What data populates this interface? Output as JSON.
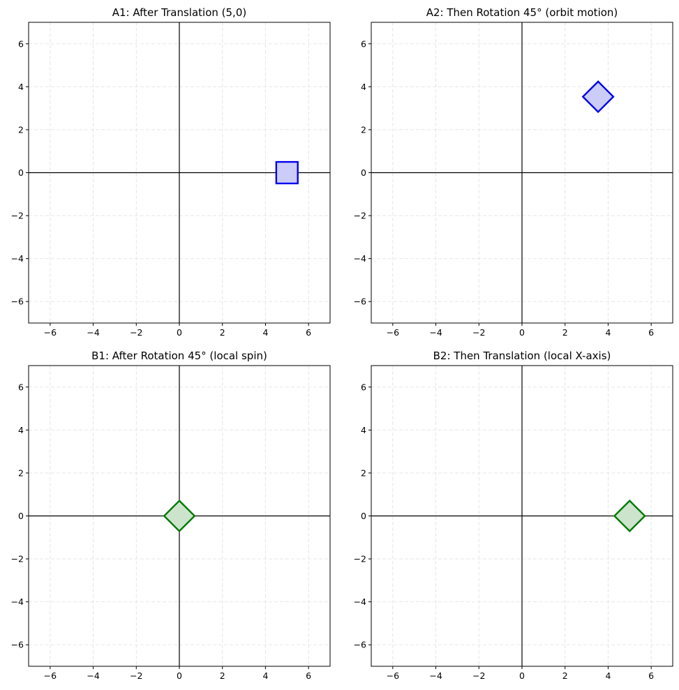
{
  "chart_data": [
    {
      "type": "line",
      "title": "A1: After Translation (5,0)",
      "xlim": [
        -7,
        7
      ],
      "ylim": [
        -7,
        7
      ],
      "xticks": [
        -6,
        -4,
        -2,
        0,
        2,
        4,
        6
      ],
      "yticks": [
        -6,
        -4,
        -2,
        0,
        2,
        4,
        6
      ],
      "xtick_labels": [
        "−6",
        "−4",
        "−2",
        "0",
        "2",
        "4",
        "6"
      ],
      "ytick_labels": [
        "−6",
        "−4",
        "−2",
        "0",
        "2",
        "4",
        "6"
      ],
      "grid": true,
      "shape": {
        "edge_color": "#0000ee",
        "fill_color": "#ccccf8",
        "vertices": [
          [
            4.5,
            -0.5
          ],
          [
            5.5,
            -0.5
          ],
          [
            5.5,
            0.5
          ],
          [
            4.5,
            0.5
          ]
        ]
      }
    },
    {
      "type": "line",
      "title": "A2: Then Rotation 45° (orbit motion)",
      "xlim": [
        -7,
        7
      ],
      "ylim": [
        -7,
        7
      ],
      "xticks": [
        -6,
        -4,
        -2,
        0,
        2,
        4,
        6
      ],
      "yticks": [
        -6,
        -4,
        -2,
        0,
        2,
        4,
        6
      ],
      "xtick_labels": [
        "−6",
        "−4",
        "−2",
        "0",
        "2",
        "4",
        "6"
      ],
      "ytick_labels": [
        "−6",
        "−4",
        "−2",
        "0",
        "2",
        "4",
        "6"
      ],
      "grid": true,
      "shape": {
        "edge_color": "#0000ee",
        "fill_color": "#ccccf8",
        "vertices": [
          [
            3.536,
            2.828
          ],
          [
            4.243,
            3.536
          ],
          [
            3.536,
            4.243
          ],
          [
            2.828,
            3.536
          ]
        ]
      }
    },
    {
      "type": "line",
      "title": "B1: After Rotation 45° (local spin)",
      "xlim": [
        -7,
        7
      ],
      "ylim": [
        -7,
        7
      ],
      "xticks": [
        -6,
        -4,
        -2,
        0,
        2,
        4,
        6
      ],
      "yticks": [
        -6,
        -4,
        -2,
        0,
        2,
        4,
        6
      ],
      "xtick_labels": [
        "−6",
        "−4",
        "−2",
        "0",
        "2",
        "4",
        "6"
      ],
      "ytick_labels": [
        "−6",
        "−4",
        "−2",
        "0",
        "2",
        "4",
        "6"
      ],
      "grid": true,
      "shape": {
        "edge_color": "#007a00",
        "fill_color": "#cce4cc",
        "vertices": [
          [
            0,
            -0.707
          ],
          [
            0.707,
            0
          ],
          [
            0,
            0.707
          ],
          [
            -0.707,
            0
          ]
        ]
      }
    },
    {
      "type": "line",
      "title": "B2: Then Translation (local X-axis)",
      "xlim": [
        -7,
        7
      ],
      "ylim": [
        -7,
        7
      ],
      "xticks": [
        -6,
        -4,
        -2,
        0,
        2,
        4,
        6
      ],
      "yticks": [
        -6,
        -4,
        -2,
        0,
        2,
        4,
        6
      ],
      "xtick_labels": [
        "−6",
        "−4",
        "−2",
        "0",
        "2",
        "4",
        "6"
      ],
      "ytick_labels": [
        "−6",
        "−4",
        "−2",
        "0",
        "2",
        "4",
        "6"
      ],
      "grid": true,
      "shape": {
        "edge_color": "#007a00",
        "fill_color": "#cce4cc",
        "vertices": [
          [
            5,
            -0.707
          ],
          [
            5.707,
            0
          ],
          [
            5,
            0.707
          ],
          [
            4.293,
            0
          ]
        ]
      }
    }
  ]
}
